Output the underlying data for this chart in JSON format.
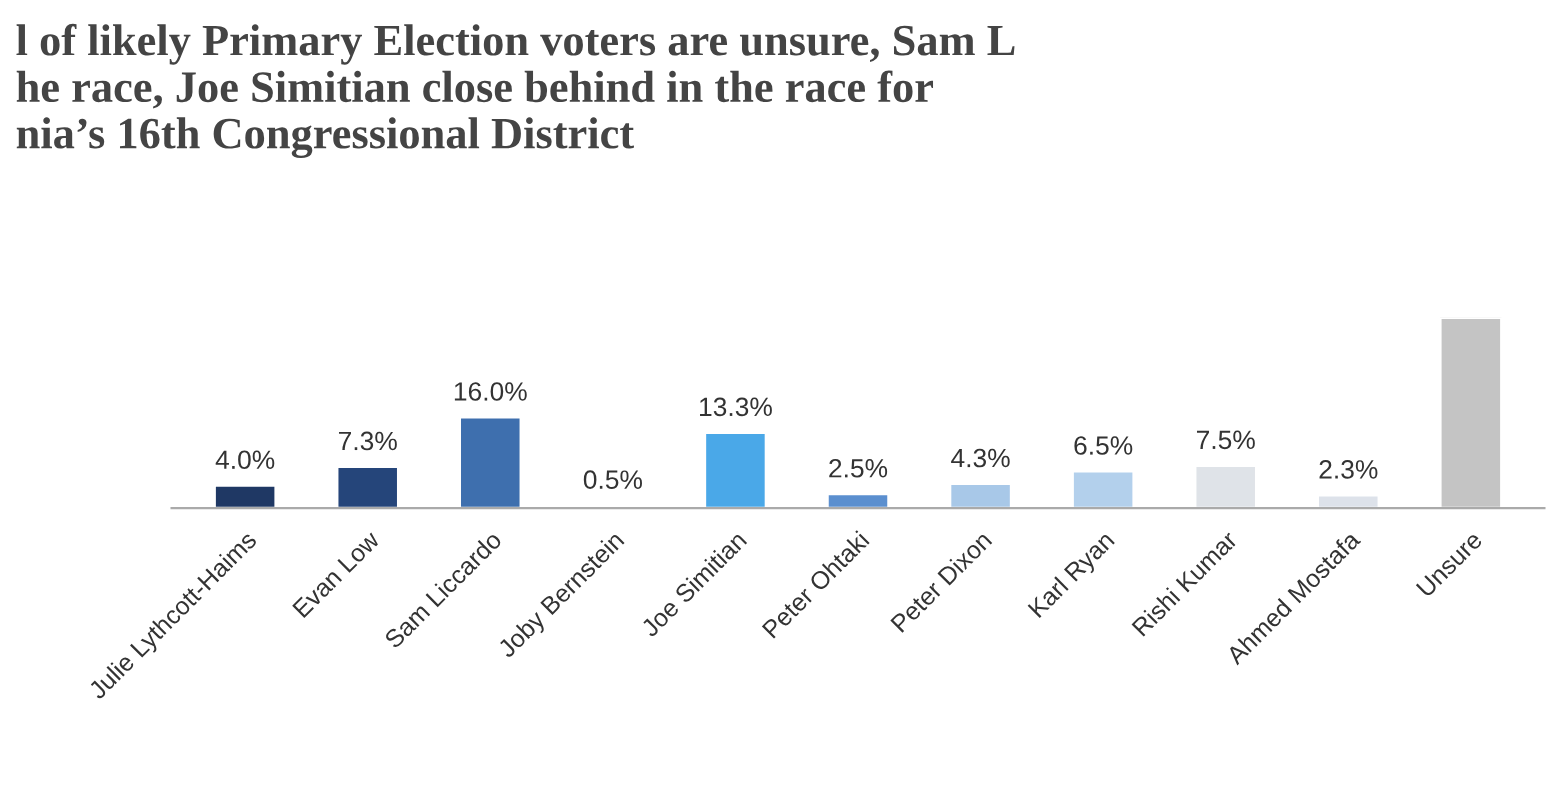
{
  "chart_data": {
    "type": "bar",
    "title": "l of likely Primary Election voters are unsure, Sam L\nhe race, Joe Simitian close behind in the race for\nnia’s 16th Congressional District",
    "categories": [
      "Julie Lythcott-Haims",
      "Evan Low",
      "Sam Liccardo",
      "Joby Bernstein",
      "Joe Simitian",
      "Peter Ohtaki",
      "Peter Dixon",
      "Karl Ryan",
      "Rishi Kumar",
      "Ahmed Mostafa",
      "Unsure"
    ],
    "values": [
      4.0,
      7.3,
      16.0,
      0.5,
      13.3,
      2.5,
      4.3,
      6.5,
      7.5,
      2.3,
      33.5
    ],
    "colors": [
      "#1f3864",
      "#25457a",
      "#3e6fae",
      "#8fb3de",
      "#4aa8e8",
      "#5b8fcf",
      "#a8c8e8",
      "#b3d0ec",
      "#dfe3e8",
      "#dde2ea",
      "#c4c4c4"
    ],
    "value_labels": [
      "4.0%",
      "7.3%",
      "16.0%",
      "0.5%",
      "13.3%",
      "2.5%",
      "4.3%",
      "6.5%",
      "7.5%",
      "2.3%",
      null
    ]
  }
}
